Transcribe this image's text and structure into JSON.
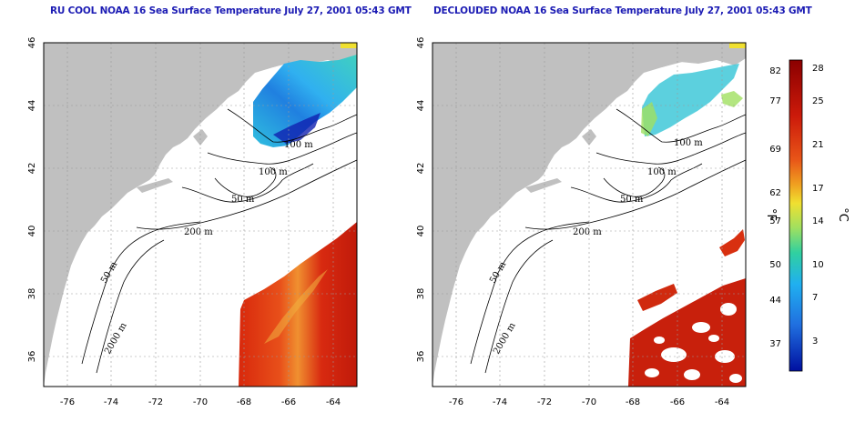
{
  "titles": {
    "left": "RU COOL NOAA 16 Sea Surface Temperature July 27, 2001 05:43 GMT",
    "right": "DECLOUDED NOAA 16 Sea Surface Temperature July 27, 2001 05:43 GMT"
  },
  "axes": {
    "lon_ticks": [
      "-76",
      "-74",
      "-72",
      "-70",
      "-68",
      "-66",
      "-64"
    ],
    "lat_ticks": [
      "36",
      "38",
      "40",
      "42",
      "44",
      "46"
    ],
    "lon_range": [
      -77.2,
      -63.0
    ],
    "lat_range": [
      35.0,
      46.0
    ]
  },
  "contour_labels": [
    "100 m",
    "100 m",
    "50 m",
    "200 m",
    "50 m",
    "2000 m"
  ],
  "colorbar": {
    "fahrenheit_label": "°F",
    "celsius_label": "°C",
    "fahrenheit_ticks": [
      "82",
      "77",
      "69",
      "62",
      "57",
      "50",
      "44",
      "37"
    ],
    "celsius_ticks": [
      "28",
      "25",
      "21",
      "17",
      "14",
      "10",
      "7",
      "3"
    ],
    "colors_top_to_bottom": [
      "#8b0000",
      "#c81c0c",
      "#e8501c",
      "#f0a020",
      "#f0e030",
      "#a0e060",
      "#30d0a0",
      "#20b0f0",
      "#2070e0",
      "#0010a0"
    ]
  },
  "colors": {
    "land": "#c0c0c0",
    "ocean": "#ffffff",
    "grid": "#9a9a9a"
  }
}
